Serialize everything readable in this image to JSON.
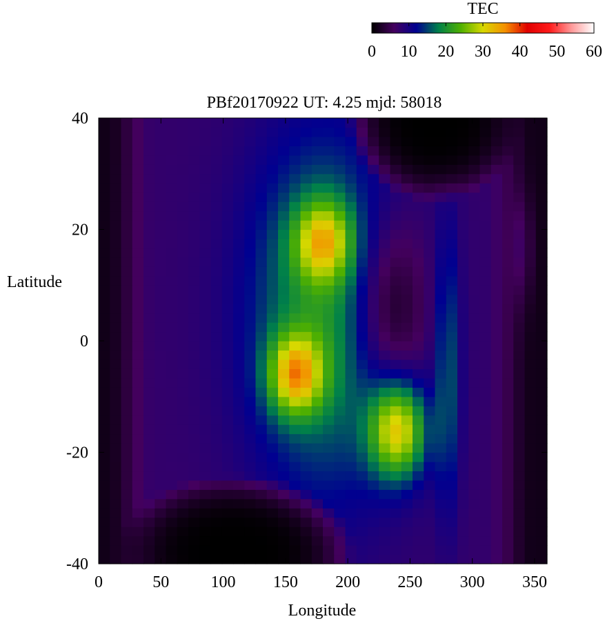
{
  "chart_data": {
    "type": "heatmap",
    "title": "PBf20170922  UT: 4.25  mjd: 58018",
    "xlabel": "Longitude",
    "ylabel": "Latitude",
    "xlim": [
      0,
      360
    ],
    "ylim": [
      -40,
      40
    ],
    "x_ticks": [
      "0",
      "50",
      "100",
      "150",
      "200",
      "250",
      "300",
      "350"
    ],
    "y_ticks": [
      "40",
      "20",
      "0",
      "-20",
      "-40"
    ],
    "colorbar": {
      "label": "TEC",
      "range": [
        0,
        60
      ],
      "ticks": [
        "0",
        "10",
        "20",
        "30",
        "40",
        "50",
        "60"
      ],
      "colormap": [
        "#000000",
        "#44005e",
        "#000090",
        "#00804a",
        "#4fb000",
        "#d8d800",
        "#f49000",
        "#e00000",
        "#ff1a1a",
        "#ff9a9a",
        "#ffffff"
      ]
    },
    "background_value": 1.5,
    "base_band": {
      "lon_min": 20,
      "lon_max": 335,
      "value": 6
    },
    "components": [
      {
        "lon": 182,
        "lat": 5,
        "dlon": 44,
        "dlat": 23,
        "amp": 13
      },
      {
        "lon": 180,
        "lat": 18,
        "dlon": 16,
        "dlat": 5,
        "amp": 17
      },
      {
        "lon": 158,
        "lat": -6,
        "dlon": 15,
        "dlat": 5,
        "amp": 20
      },
      {
        "lon": 240,
        "lat": -16,
        "dlon": 16,
        "dlat": 6,
        "amp": 22
      },
      {
        "lon": 232,
        "lat": 6,
        "dlon": 22,
        "dlat": 12,
        "amp": -10
      },
      {
        "lon": 280,
        "lat": -5,
        "dlon": 7,
        "dlat": 18,
        "amp": 8
      },
      {
        "lon": 340,
        "lat": 17,
        "dlon": 6,
        "dlat": 7,
        "amp": 4
      }
    ],
    "dark_regions": [
      {
        "lon": 110,
        "lat": -38,
        "dlon": 95,
        "dlat": 14
      },
      {
        "lon": 270,
        "lat": 40,
        "dlon": 70,
        "dlat": 15
      }
    ]
  }
}
